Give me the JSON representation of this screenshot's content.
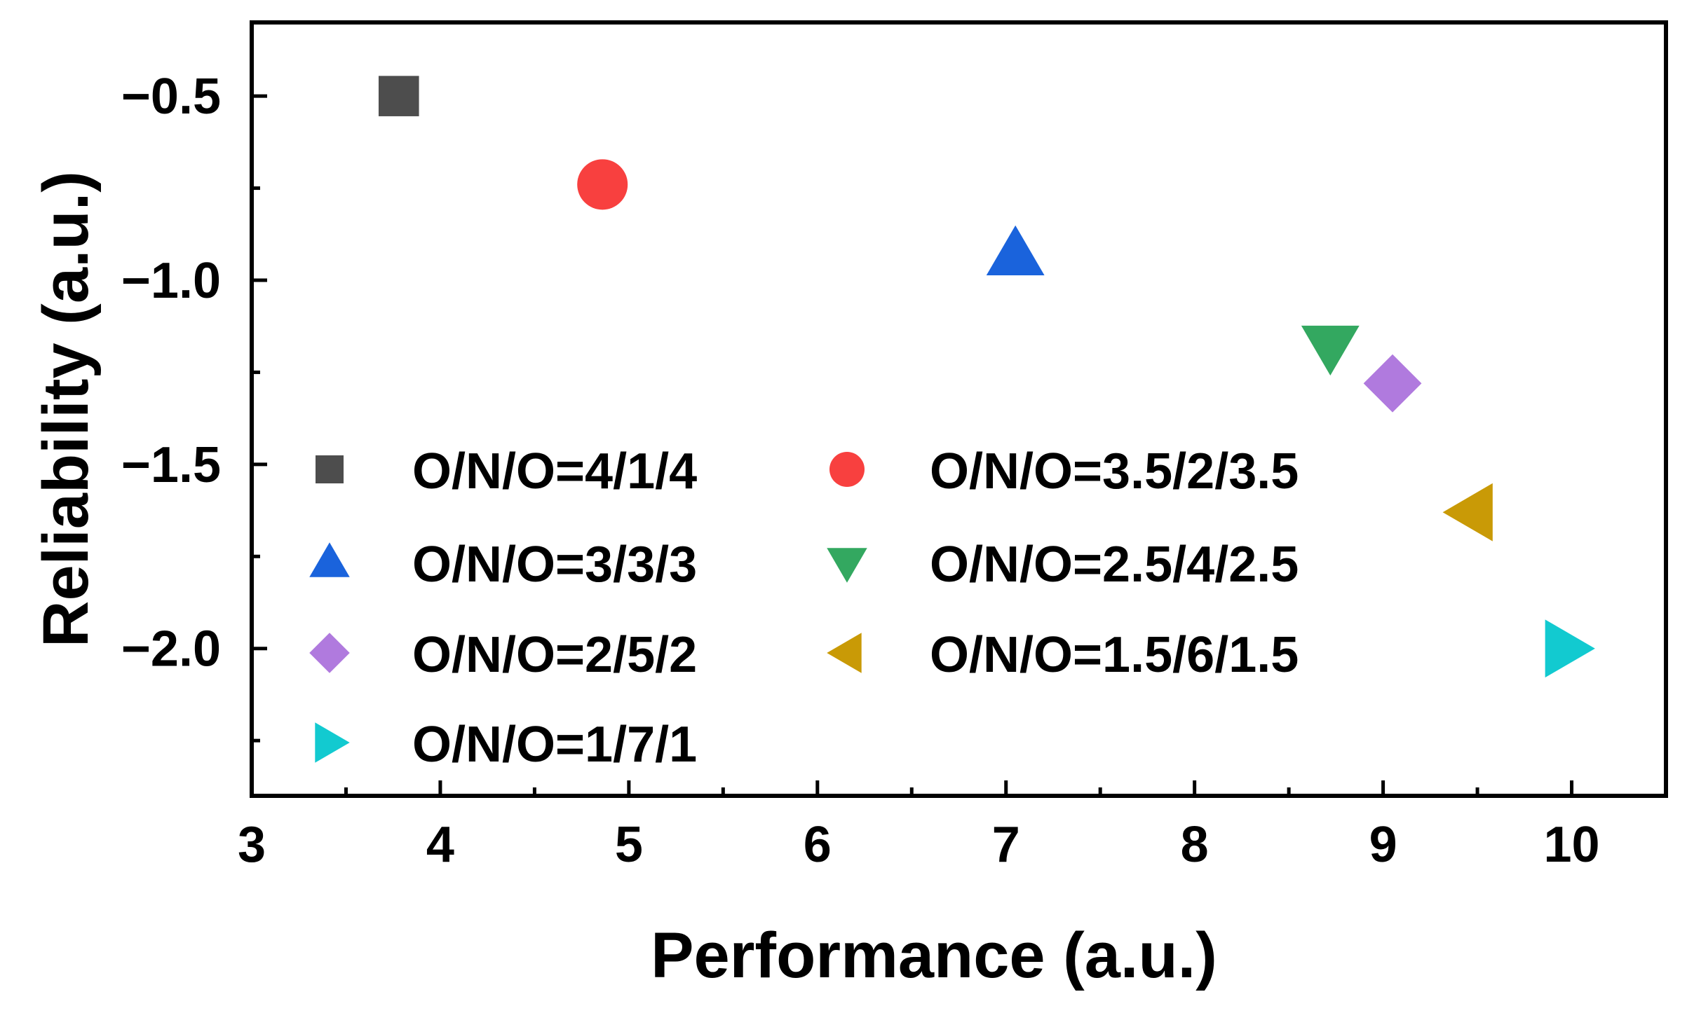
{
  "chart_data": {
    "type": "scatter",
    "title": "",
    "xlabel": "Performance (a.u.)",
    "ylabel": "Reliability (a.u.)",
    "xlim": [
      3,
      10.5
    ],
    "ylim": [
      -2.4,
      -0.3
    ],
    "x_major_ticks": [
      3,
      4,
      5,
      6,
      7,
      8,
      9,
      10
    ],
    "x_tick_labels": [
      "3",
      "4",
      "5",
      "6",
      "7",
      "8",
      "9",
      "10"
    ],
    "x_minor_ticks": [
      3.5,
      4.5,
      5.5,
      6.5,
      7.5,
      8.5,
      9.5
    ],
    "y_major_ticks": [
      -0.5,
      -1.0,
      -1.5,
      -2.0
    ],
    "y_tick_labels": [
      "−0.5",
      "−1.0",
      "−1.5",
      "−2.0"
    ],
    "y_minor_ticks": [
      -0.75,
      -1.25,
      -1.75,
      -2.25
    ],
    "grid": false,
    "legend_position": "bottom-left, two columns",
    "series": [
      {
        "name": "O/N/O=4/1/4",
        "marker": "square",
        "color": "#4d4d4d",
        "x": [
          3.78
        ],
        "y": [
          -0.5
        ]
      },
      {
        "name": "O/N/O=3.5/2/3.5",
        "marker": "circle",
        "color": "#f8403f",
        "x": [
          4.86
        ],
        "y": [
          -0.74
        ]
      },
      {
        "name": "O/N/O=3/3/3",
        "marker": "triangle-up",
        "color": "#1a63dc",
        "x": [
          7.05
        ],
        "y": [
          -0.93
        ]
      },
      {
        "name": "O/N/O=2.5/4/2.5",
        "marker": "triangle-down",
        "color": "#33a860",
        "x": [
          8.72
        ],
        "y": [
          -1.18
        ]
      },
      {
        "name": "O/N/O=2/5/2",
        "marker": "diamond",
        "color": "#b07ade",
        "x": [
          9.05
        ],
        "y": [
          -1.28
        ]
      },
      {
        "name": "O/N/O=1.5/6/1.5",
        "marker": "triangle-left",
        "color": "#c99a06",
        "x": [
          9.47
        ],
        "y": [
          -1.63
        ]
      },
      {
        "name": "O/N/O=1/7/1",
        "marker": "triangle-right",
        "color": "#12cad0",
        "x": [
          9.97
        ],
        "y": [
          -2.0
        ]
      }
    ]
  }
}
